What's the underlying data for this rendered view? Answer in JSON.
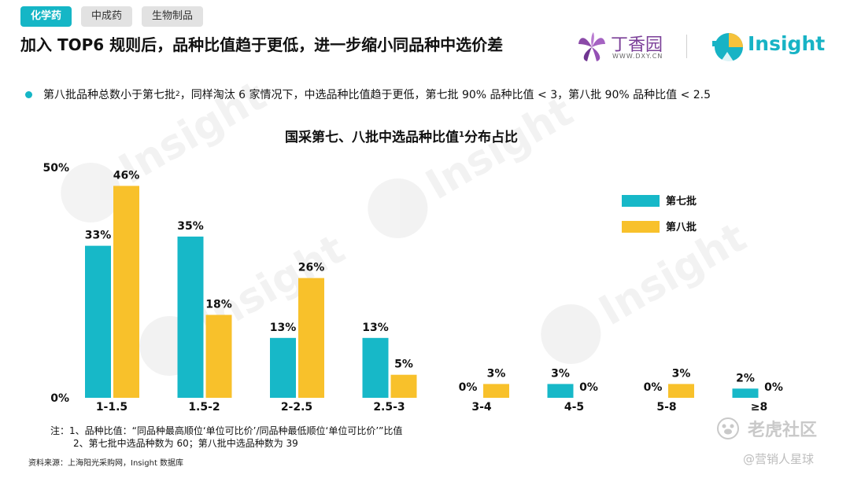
{
  "tabs": [
    {
      "label": "化学药",
      "active": true
    },
    {
      "label": "中成药",
      "active": false
    },
    {
      "label": "生物制品",
      "active": false
    }
  ],
  "header": {
    "title": "加入 TOP6 规则后，品种比值趋于更低，进一步缩小同品种中选价差"
  },
  "logos": {
    "dxy_name": "丁香园",
    "dxy_url": "WWW.DXY.CN",
    "insight_name": "Insight"
  },
  "bullet": {
    "text_a": "第八批品种总数小于第七批",
    "sup": "2",
    "text_b": "，同样淘汰 6 家情况下，中选品种比值趋于更低，第七批 90% 品种比值 < 3，第八批 90% 品种比值 < 2.5"
  },
  "chart_data": {
    "type": "bar",
    "title_a": "国采第七、八批中选品种比值",
    "title_sup": "1",
    "title_b": "分布占比",
    "categories": [
      "1-1.5",
      "1.5-2",
      "2-2.5",
      "2.5-3",
      "3-4",
      "4-5",
      "5-8",
      "≥8"
    ],
    "series": [
      {
        "name": "第七批",
        "values": [
          33,
          35,
          13,
          13,
          0,
          3,
          0,
          2
        ],
        "labels": [
          "33%",
          "35%",
          "13%",
          "13%",
          "0%",
          "3%",
          "0%",
          "2%"
        ],
        "color": "#17b8c8"
      },
      {
        "name": "第八批",
        "values": [
          46,
          18,
          26,
          5,
          3,
          0,
          3,
          0
        ],
        "labels": [
          "46%",
          "18%",
          "26%",
          "5%",
          "3%",
          "0%",
          "3%",
          "0%"
        ],
        "color": "#f8c12b"
      }
    ],
    "ylim": [
      0,
      50
    ],
    "y_ticks": [
      "0%",
      "50%"
    ],
    "legend_position": "top-right",
    "grid": false
  },
  "notes": {
    "line1": "注：1、品种比值：“同品种最高顺位‘单位可比价’/同品种最低顺位‘单位可比价’”比值",
    "line2": "2、第七批中选品种数为 60；第八批中选品种数为 39"
  },
  "source": "资料来源：上海阳光采购网，Insight 数据库",
  "watermark": {
    "text": "Insight",
    "corner_a": "老虎社区",
    "corner_b": "@营销人星球"
  },
  "colors": {
    "accent": "#15b6c6",
    "series7": "#17b8c8",
    "series8": "#f8c12b",
    "dxy": "#7b3f98"
  }
}
